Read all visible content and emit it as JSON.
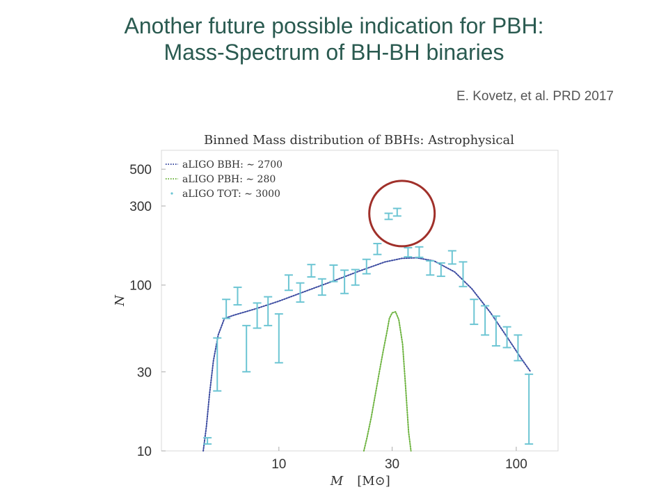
{
  "slide": {
    "title_line1": "Another future possible indication for PBH:",
    "title_line2": "Mass-Spectrum of BH-BH binaries",
    "citation": "E. Kovetz, et al. PRD 2017"
  },
  "colors": {
    "title": "#2a5a50",
    "bbh": "#3a4aa0",
    "pbh": "#6db33f",
    "tot": "#6cc5d3",
    "circle": "#a0302a"
  },
  "chart_data": {
    "type": "line",
    "title": "Binned Mass distribution of BBHs: Astrophysical",
    "xlabel": "M",
    "xlabel_unit": "[M⊙]",
    "ylabel": "N",
    "xscale": "log",
    "yscale": "log",
    "xlim": [
      3.2,
      150
    ],
    "ylim": [
      10,
      650
    ],
    "xticks": [
      10,
      30,
      100
    ],
    "xtick_labels": [
      "10",
      "30",
      "100"
    ],
    "yticks": [
      10,
      30,
      100,
      300,
      500
    ],
    "ytick_labels": [
      "10",
      "30",
      "100",
      "300",
      "500"
    ],
    "grid": false,
    "legend_position": "top-left",
    "series": [
      {
        "name": "aLIGO BBH: ∼ 2700",
        "style": "dotted-line",
        "x": [
          4.8,
          4.95,
          5.1,
          5.3,
          5.55,
          5.9,
          6.5,
          8,
          10,
          13,
          17,
          22,
          28,
          33,
          38,
          45,
          55,
          65,
          78,
          92,
          105,
          115
        ],
        "y": [
          10,
          14,
          22,
          35,
          50,
          63,
          66,
          72,
          80,
          92,
          106,
          122,
          138,
          145,
          146,
          140,
          120,
          95,
          68,
          48,
          36,
          30
        ]
      },
      {
        "name": "aLIGO PBH: ∼ 280",
        "style": "dotted-line",
        "x": [
          22.8,
          23.5,
          24.5,
          25.5,
          26.5,
          27.5,
          28.5,
          29.2,
          30,
          31,
          32,
          33.2,
          34.2,
          35.2,
          36
        ],
        "y": [
          10,
          12,
          16,
          22,
          30,
          40,
          52,
          63,
          68,
          69,
          62,
          44,
          24,
          13,
          10
        ]
      },
      {
        "name": "aLIGO TOT: ∼ 3000",
        "style": "errorbars",
        "x": [
          5,
          5.5,
          6,
          6.7,
          7.3,
          8.1,
          9,
          10,
          11,
          12.3,
          13.7,
          15.2,
          17,
          18.9,
          21,
          23.4,
          26,
          29,
          31.5,
          35,
          39,
          43.4,
          48.2,
          53.7,
          59.7,
          66.4,
          73.9,
          82.2,
          91.4,
          101.7,
          113.1
        ],
        "y": [
          11.5,
          36,
          72,
          87,
          42,
          66,
          70,
          50,
          104,
          90,
          122,
          98,
          118,
          106,
          112,
          130,
          165,
          260,
          275,
          158,
          158,
          128,
          125,
          148,
          118,
          70,
          62,
          53,
          48,
          42,
          19
        ],
        "y_lo": [
          11,
          23,
          63,
          76,
          30,
          55,
          57,
          34,
          93,
          79,
          112,
          87,
          105,
          89,
          100,
          117,
          153,
          249,
          261,
          148,
          147,
          115,
          113,
          134,
          98,
          58,
          50,
          43,
          42,
          35,
          11
        ],
        "y_hi": [
          12,
          48,
          82,
          97,
          57,
          78,
          85,
          67,
          115,
          103,
          133,
          109,
          132,
          123,
          124,
          143,
          178,
          271,
          290,
          168,
          170,
          140,
          136,
          161,
          138,
          82,
          75,
          65,
          56,
          50,
          29
        ]
      }
    ],
    "annotations": [
      {
        "type": "circle",
        "x": 33,
        "y": 270,
        "color": "red"
      }
    ]
  }
}
